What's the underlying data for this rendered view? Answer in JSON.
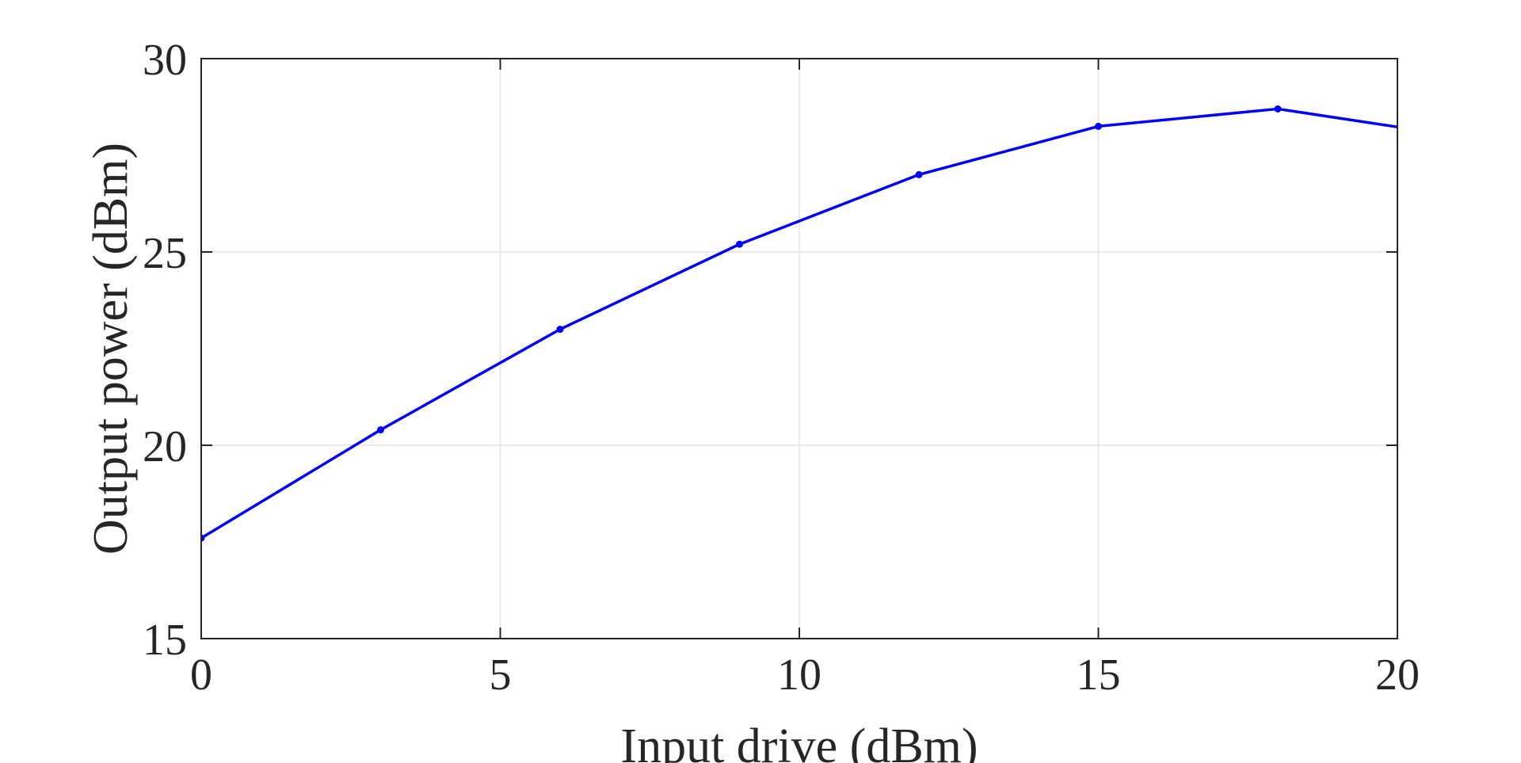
{
  "chart_data": {
    "type": "line",
    "title": "",
    "xlabel": "Input drive (dBm)",
    "ylabel": "Output power (dBm)",
    "xlim": [
      0,
      20
    ],
    "ylim": [
      15,
      30
    ],
    "xticks": [
      0,
      5,
      10,
      15,
      20
    ],
    "yticks": [
      15,
      20,
      25,
      30
    ],
    "xtick_labels": [
      "0",
      "5",
      "10",
      "15",
      "20"
    ],
    "ytick_labels": [
      "15",
      "20",
      "25",
      "30"
    ],
    "grid": true,
    "series": [
      {
        "color": "#0000ff",
        "marker": "dot",
        "x": [
          0,
          3,
          6,
          9,
          12,
          15,
          18,
          21
        ],
        "y": [
          17.6,
          20.4,
          23.0,
          25.2,
          27.0,
          28.25,
          28.7,
          28.0
        ]
      }
    ]
  }
}
